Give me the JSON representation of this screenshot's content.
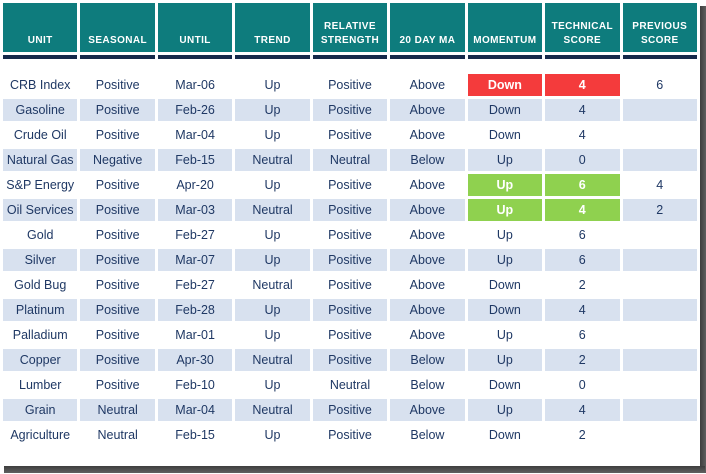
{
  "chart_data": {
    "type": "table",
    "columns": [
      "UNIT",
      "SEASONAL",
      "UNTIL",
      "TREND",
      "RELATIVE STRENGTH",
      "20 DAY MA",
      "MOMENTUM",
      "TECHNICAL SCORE",
      "PREVIOUS SCORE"
    ],
    "column_keys": [
      "unit",
      "seasonal",
      "until",
      "trend",
      "relative-strength",
      "20-day-ma",
      "momentum",
      "technical-score",
      "previous-score"
    ],
    "rows": [
      {
        "cells": [
          "CRB Index",
          "Positive",
          "Mar-06",
          "Up",
          "Positive",
          "Above",
          "Down",
          "4",
          "6"
        ],
        "momentum_style": "red",
        "score_style": "red"
      },
      {
        "cells": [
          "Gasoline",
          "Positive",
          "Feb-26",
          "Up",
          "Positive",
          "Above",
          "Down",
          "4",
          ""
        ],
        "momentum_style": null,
        "score_style": null
      },
      {
        "cells": [
          "Crude Oil",
          "Positive",
          "Mar-04",
          "Up",
          "Positive",
          "Above",
          "Down",
          "4",
          ""
        ],
        "momentum_style": null,
        "score_style": null
      },
      {
        "cells": [
          "Natural Gas",
          "Negative",
          "Feb-15",
          "Neutral",
          "Neutral",
          "Below",
          "Up",
          "0",
          ""
        ],
        "momentum_style": null,
        "score_style": null
      },
      {
        "cells": [
          "S&P Energy",
          "Positive",
          "Apr-20",
          "Up",
          "Positive",
          "Above",
          "Up",
          "6",
          "4"
        ],
        "momentum_style": "green",
        "score_style": "green"
      },
      {
        "cells": [
          "Oil Services",
          "Positive",
          "Mar-03",
          "Neutral",
          "Positive",
          "Above",
          "Up",
          "4",
          "2"
        ],
        "momentum_style": "green",
        "score_style": "green"
      },
      {
        "cells": [
          "Gold",
          "Positive",
          "Feb-27",
          "Up",
          "Positive",
          "Above",
          "Up",
          "6",
          ""
        ],
        "momentum_style": null,
        "score_style": null
      },
      {
        "cells": [
          "Silver",
          "Positive",
          "Mar-07",
          "Up",
          "Positive",
          "Above",
          "Up",
          "6",
          ""
        ],
        "momentum_style": null,
        "score_style": null
      },
      {
        "cells": [
          "Gold Bug",
          "Positive",
          "Feb-27",
          "Neutral",
          "Positive",
          "Above",
          "Down",
          "2",
          ""
        ],
        "momentum_style": null,
        "score_style": null
      },
      {
        "cells": [
          "Platinum",
          "Positive",
          "Feb-28",
          "Up",
          "Positive",
          "Above",
          "Down",
          "4",
          ""
        ],
        "momentum_style": null,
        "score_style": null
      },
      {
        "cells": [
          "Palladium",
          "Positive",
          "Mar-01",
          "Up",
          "Positive",
          "Above",
          "Up",
          "6",
          ""
        ],
        "momentum_style": null,
        "score_style": null
      },
      {
        "cells": [
          "Copper",
          "Positive",
          "Apr-30",
          "Neutral",
          "Positive",
          "Below",
          "Up",
          "2",
          ""
        ],
        "momentum_style": null,
        "score_style": null
      },
      {
        "cells": [
          "Lumber",
          "Positive",
          "Feb-10",
          "Up",
          "Neutral",
          "Below",
          "Down",
          "0",
          ""
        ],
        "momentum_style": null,
        "score_style": null
      },
      {
        "cells": [
          "Grain",
          "Neutral",
          "Mar-04",
          "Neutral",
          "Positive",
          "Above",
          "Up",
          "4",
          ""
        ],
        "momentum_style": null,
        "score_style": null
      },
      {
        "cells": [
          "Agriculture",
          "Neutral",
          "Feb-15",
          "Up",
          "Positive",
          "Below",
          "Down",
          "2",
          ""
        ],
        "momentum_style": null,
        "score_style": null
      }
    ]
  },
  "colors": {
    "header_bg": "#0e7c7d",
    "header_text": "#ffffff",
    "divider": "#16294a",
    "row_alt": "#d8e1ef",
    "row_plain": "#ffffff",
    "text": "#1f3864",
    "highlight_red": "#f43b3c",
    "highlight_green": "#8fd14f",
    "highlight_text": "#ffffff",
    "shadow": "#3d3d3d"
  }
}
